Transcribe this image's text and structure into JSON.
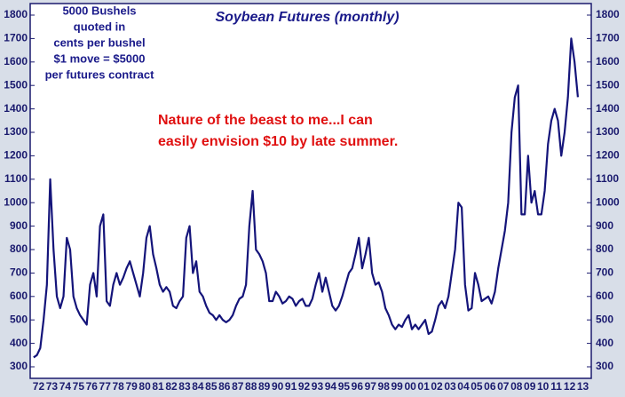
{
  "chart_data": {
    "type": "line",
    "title": "Soybean Futures (monthly)",
    "note_lines": [
      "5000 Bushels",
      "quoted in",
      "cents per bushel",
      "$1 move = $5000",
      "per futures contract"
    ],
    "callout_lines": [
      "Nature of the beast to me...I can",
      "easily envision $10 by late summer."
    ],
    "categories": [
      "72",
      null,
      null,
      null,
      "73",
      null,
      null,
      null,
      "74",
      null,
      null,
      null,
      "75",
      null,
      null,
      null,
      "76",
      null,
      null,
      null,
      "77",
      null,
      null,
      null,
      "78",
      null,
      null,
      null,
      "79",
      null,
      null,
      null,
      "80",
      null,
      null,
      null,
      "81",
      null,
      null,
      null,
      "82",
      null,
      null,
      null,
      "83",
      null,
      null,
      null,
      "84",
      null,
      null,
      null,
      "85",
      null,
      null,
      null,
      "86",
      null,
      null,
      null,
      "87",
      null,
      null,
      null,
      "88",
      null,
      null,
      null,
      "89",
      null,
      null,
      null,
      "90",
      null,
      null,
      null,
      "91",
      null,
      null,
      null,
      "92",
      null,
      null,
      null,
      "93",
      null,
      null,
      null,
      "94",
      null,
      null,
      null,
      "95",
      null,
      null,
      null,
      "96",
      null,
      null,
      null,
      "97",
      null,
      null,
      null,
      "98",
      null,
      null,
      null,
      "99",
      null,
      null,
      null,
      "00",
      null,
      null,
      null,
      "01",
      null,
      null,
      null,
      "02",
      null,
      null,
      null,
      "03",
      null,
      null,
      null,
      "04",
      null,
      null,
      null,
      "05",
      null,
      null,
      null,
      "06",
      null,
      null,
      null,
      "07",
      null,
      null,
      null,
      "08",
      null,
      null,
      null,
      "09",
      null,
      null,
      null,
      "10",
      null,
      null,
      null,
      "11",
      null,
      null,
      null,
      "12",
      null,
      null,
      null,
      "13",
      null,
      null,
      null
    ],
    "values": [
      340,
      350,
      380,
      500,
      650,
      1100,
      800,
      600,
      550,
      600,
      850,
      800,
      600,
      550,
      520,
      500,
      480,
      650,
      700,
      600,
      900,
      950,
      580,
      560,
      650,
      700,
      650,
      680,
      720,
      750,
      700,
      650,
      600,
      700,
      850,
      900,
      780,
      720,
      650,
      620,
      640,
      620,
      560,
      550,
      580,
      600,
      850,
      900,
      700,
      750,
      620,
      600,
      560,
      530,
      520,
      500,
      520,
      500,
      490,
      500,
      520,
      560,
      590,
      600,
      650,
      900,
      1050,
      800,
      780,
      750,
      700,
      580,
      580,
      620,
      600,
      570,
      580,
      600,
      590,
      560,
      580,
      590,
      560,
      560,
      590,
      650,
      700,
      620,
      680,
      620,
      560,
      540,
      560,
      600,
      650,
      700,
      720,
      780,
      850,
      720,
      780,
      850,
      700,
      650,
      660,
      620,
      550,
      520,
      480,
      460,
      480,
      470,
      500,
      520,
      460,
      480,
      460,
      480,
      500,
      440,
      450,
      500,
      560,
      580,
      550,
      600,
      700,
      800,
      1000,
      980,
      650,
      540,
      550,
      700,
      650,
      580,
      590,
      600,
      570,
      620,
      720,
      800,
      880,
      1000,
      1300,
      1450,
      1500,
      950,
      950,
      1200,
      1000,
      1050,
      950,
      950,
      1050,
      1250,
      1350,
      1400,
      1350,
      1200,
      1300,
      1450,
      1700,
      1600,
      1450,
      null,
      null,
      null
    ],
    "color": "#14147a",
    "ylim": [
      300,
      1800
    ],
    "yticks": [
      300,
      400,
      500,
      600,
      700,
      800,
      900,
      1000,
      1100,
      1200,
      1300,
      1400,
      1500,
      1600,
      1700,
      1800
    ],
    "right_axis": true
  }
}
